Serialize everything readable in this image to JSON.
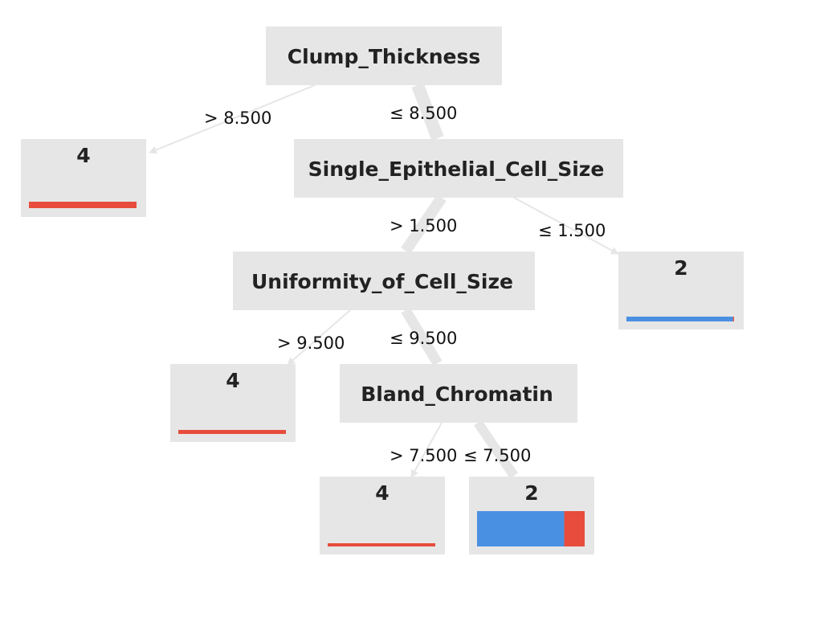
{
  "colors": {
    "node_fill": "#e6e6e6",
    "edge": "#e6e6e6",
    "class_2": "#4a90e2",
    "class_4": "#e74c3c"
  },
  "nodes": {
    "root": {
      "label": "Clump_Thickness"
    },
    "split2": {
      "label": "Single_Epithelial_Cell_Size"
    },
    "split3": {
      "label": "Uniformity_of_Cell_Size"
    },
    "split4": {
      "label": "Bland_Chromatin"
    },
    "leaf1": {
      "label": "4",
      "class_fractions": {
        "2": 0.0,
        "4": 1.0
      }
    },
    "leaf2": {
      "label": "2",
      "class_fractions": {
        "2": 0.99,
        "4": 0.01
      }
    },
    "leaf3": {
      "label": "4",
      "class_fractions": {
        "2": 0.0,
        "4": 1.0
      }
    },
    "leaf4": {
      "label": "4",
      "class_fractions": {
        "2": 0.0,
        "4": 1.0
      }
    },
    "leaf5": {
      "label": "2",
      "class_fractions": {
        "2": 0.81,
        "4": 0.19
      }
    }
  },
  "edges": {
    "root_leaf1": {
      "label": "> 8.500"
    },
    "root_split2": {
      "label": "≤ 8.500"
    },
    "split2_split3": {
      "label": "> 1.500"
    },
    "split2_leaf2": {
      "label": "≤ 1.500"
    },
    "split3_leaf3": {
      "label": "> 9.500"
    },
    "split3_split4": {
      "label": "≤ 9.500"
    },
    "split4_leaf4": {
      "label": "> 7.500"
    },
    "split4_leaf5": {
      "label": "≤ 7.500"
    }
  }
}
